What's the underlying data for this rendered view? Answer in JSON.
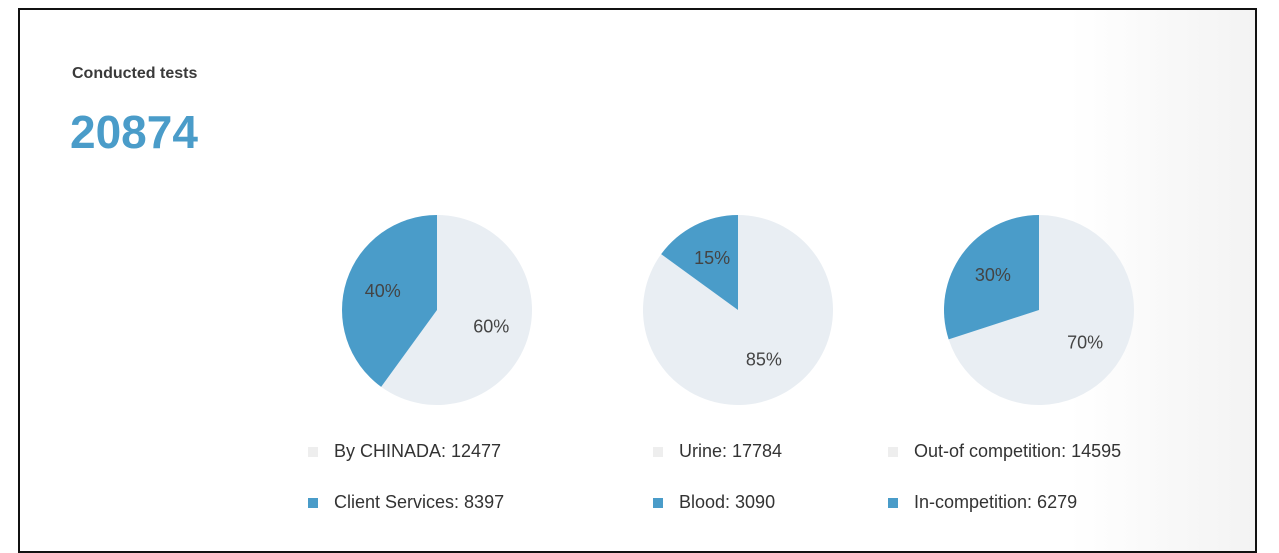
{
  "header": {
    "title": "Conducted tests",
    "total": 20874
  },
  "chart_data": [
    {
      "type": "pie",
      "categories": [
        "By CHINADA: 12477",
        "Client Services: 8397"
      ],
      "values": [
        60,
        40
      ],
      "value_labels": [
        "60%",
        "40%"
      ],
      "colors": [
        "#e9eef3",
        "#4a9cc9"
      ]
    },
    {
      "type": "pie",
      "categories": [
        "Urine: 17784",
        "Blood: 3090"
      ],
      "values": [
        85,
        15
      ],
      "value_labels": [
        "85%",
        "15%"
      ],
      "colors": [
        "#e9eef3",
        "#4a9cc9"
      ]
    },
    {
      "type": "pie",
      "categories": [
        "Out-of competition: 14595",
        "In-competition: 6279"
      ],
      "values": [
        70,
        30
      ],
      "value_labels": [
        "70%",
        "30%"
      ],
      "colors": [
        "#e9eef3",
        "#4a9cc9"
      ]
    }
  ]
}
